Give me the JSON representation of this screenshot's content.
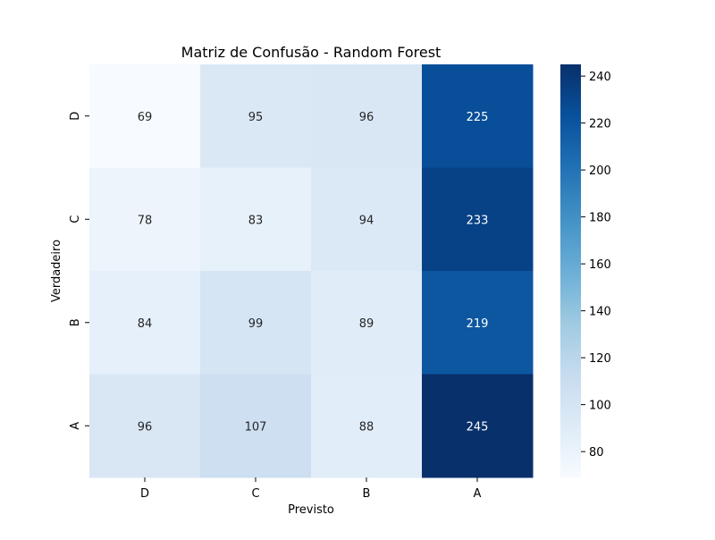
{
  "chart_data": {
    "type": "heatmap",
    "title": "Matriz de Confusão - Random Forest",
    "xlabel": "Previsto",
    "ylabel": "Verdadeiro",
    "x_categories": [
      "D",
      "C",
      "B",
      "A"
    ],
    "y_categories": [
      "D",
      "C",
      "B",
      "A"
    ],
    "values": [
      [
        69,
        95,
        96,
        225
      ],
      [
        78,
        83,
        94,
        233
      ],
      [
        84,
        99,
        89,
        219
      ],
      [
        96,
        107,
        88,
        245
      ]
    ],
    "colormap": "Blues",
    "colorbar": {
      "range": [
        69,
        245
      ],
      "ticks": [
        80,
        100,
        120,
        140,
        160,
        180,
        200,
        220,
        240
      ]
    }
  }
}
